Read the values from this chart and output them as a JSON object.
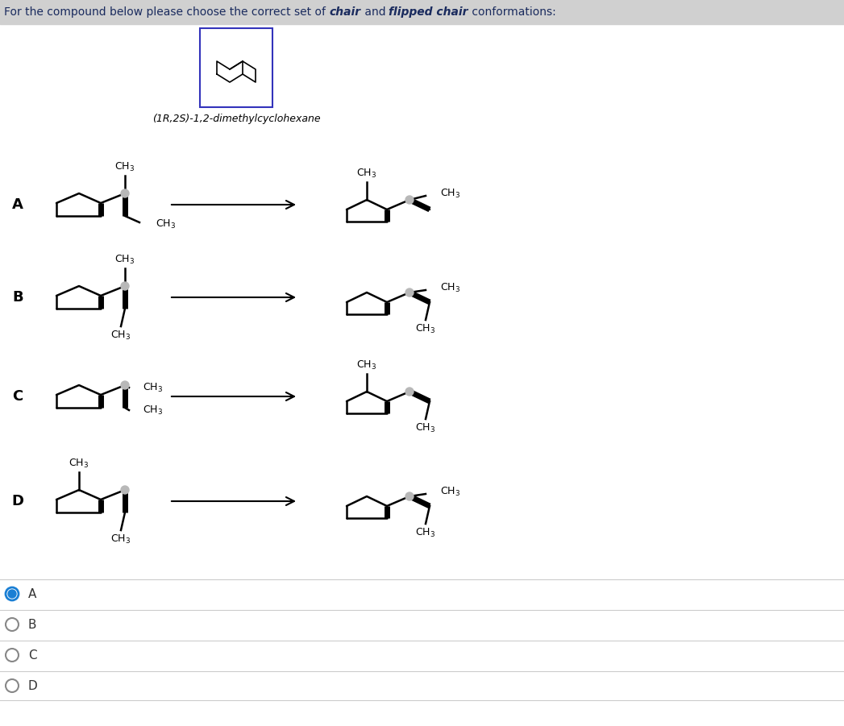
{
  "header_bg": "#d0d0d0",
  "bg_color": "#ffffff",
  "text_color": "#1a2b5e",
  "line_color": "#000000",
  "dot_color": "#b8b8b8",
  "arrow_color": "#000000",
  "box_color": "#3333bb",
  "header_text": "For the compound below please choose the correct set of ",
  "header_bold1": "chair",
  "header_mid": " and ",
  "header_bold2": "flipped chair",
  "header_end": " conformations:",
  "compound_label": "(1R,2S)-1,2-dimethylcyclohexane",
  "row_labels": [
    "A",
    "B",
    "C",
    "D"
  ],
  "radio_labels": [
    "A",
    "B",
    "C",
    "D"
  ],
  "selected_radio": 0,
  "radio_selected_color": "#1a7fd4",
  "radio_unselected_color": "#888888",
  "separator_color": "#cccccc"
}
